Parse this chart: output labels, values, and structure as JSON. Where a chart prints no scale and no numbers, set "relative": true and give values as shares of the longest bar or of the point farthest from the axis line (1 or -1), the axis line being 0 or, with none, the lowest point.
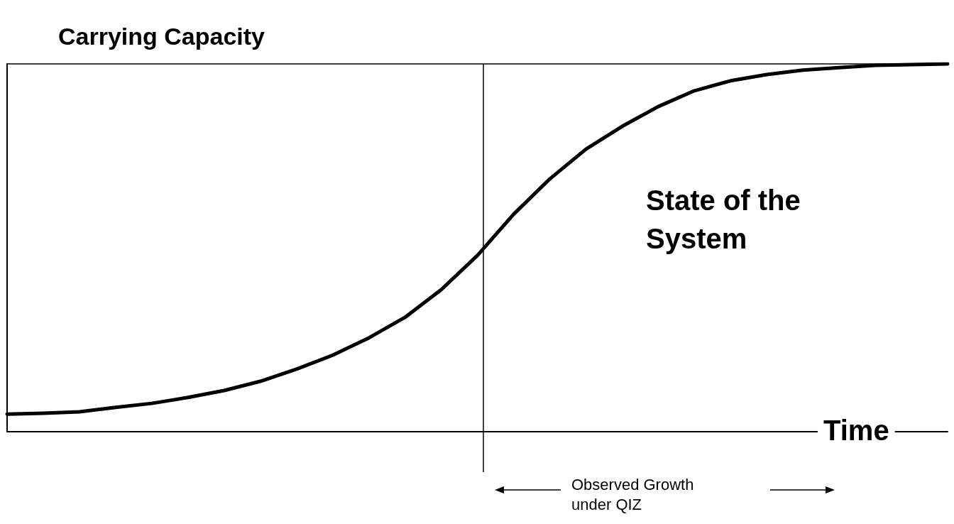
{
  "chart_data": {
    "type": "line",
    "relative": true,
    "xlabel": "Time",
    "categories": [
      null,
      null,
      null,
      null,
      null,
      null,
      null,
      null,
      null,
      null,
      null,
      null,
      null,
      null,
      null,
      null,
      null,
      null,
      null,
      null,
      null,
      null,
      null,
      null,
      null,
      null,
      null
    ],
    "grid": false,
    "marker": "none",
    "line_style": "solid",
    "series": [
      {
        "color": "#000000",
        "values": [
          0.048,
          0.05,
          0.054,
          0.066,
          0.077,
          0.093,
          0.112,
          0.137,
          0.17,
          0.208,
          0.255,
          0.311,
          0.386,
          0.479,
          0.591,
          0.687,
          0.768,
          0.83,
          0.884,
          0.927,
          0.954,
          0.971,
          0.983,
          0.99,
          0.996,
          0.998,
          1.0
        ]
      }
    ],
    "ref_lines": [
      {
        "axis": "y",
        "value": 1,
        "label": "Carrying Capacity",
        "color": "#000000"
      }
    ],
    "annotations": [
      "State of the System",
      "Observed Growth under QIZ"
    ]
  }
}
